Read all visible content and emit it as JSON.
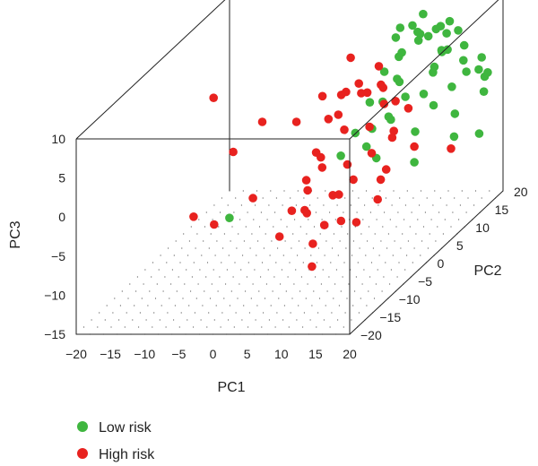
{
  "chart_data": {
    "type": "scatter3d",
    "title": "",
    "xlabel": "PC1",
    "ylabel": "PC2",
    "zlabel": "PC3",
    "xlim": [
      -20,
      20
    ],
    "ylim": [
      -20,
      20
    ],
    "zlim": [
      -15,
      10
    ],
    "x_ticks": [
      "−20",
      "−15",
      "−10",
      "−5",
      "0",
      "5",
      "10",
      "15",
      "20"
    ],
    "y_ticks": [
      "−20",
      "−15",
      "−10",
      "−5",
      "0",
      "5",
      "10",
      "15",
      "20"
    ],
    "z_ticks": [
      "−15",
      "−10",
      "−5",
      "0",
      "5",
      "10"
    ],
    "legend_position": "bottom-left",
    "series": [
      {
        "name": "Low risk",
        "color": "#3fb63f",
        "points": [
          [
            10,
            17,
            9
          ],
          [
            13,
            15,
            8
          ],
          [
            9,
            18,
            6
          ],
          [
            14,
            16,
            7
          ],
          [
            16,
            17,
            5
          ],
          [
            11,
            14,
            7
          ],
          [
            12,
            12,
            9
          ],
          [
            15,
            13,
            6
          ],
          [
            17,
            15,
            4
          ],
          [
            18,
            14,
            3
          ],
          [
            8,
            15,
            5
          ],
          [
            7,
            16,
            4
          ],
          [
            13,
            18,
            4
          ],
          [
            10,
            11,
            10
          ],
          [
            19,
            17,
            1
          ],
          [
            20,
            15,
            0
          ],
          [
            6,
            14,
            3
          ],
          [
            12,
            16,
            2
          ],
          [
            15,
            11,
            5
          ],
          [
            17,
            12,
            2
          ],
          [
            9,
            12,
            3
          ],
          [
            11,
            9,
            4
          ],
          [
            14,
            10,
            2
          ],
          [
            16,
            9,
            1
          ],
          [
            8,
            10,
            1
          ],
          [
            13,
            7,
            3
          ],
          [
            18,
            11,
            -1
          ],
          [
            5,
            12,
            0
          ],
          [
            10,
            8,
            0
          ],
          [
            12,
            5,
            1
          ],
          [
            7,
            9,
            -2
          ],
          [
            15,
            6,
            -1
          ],
          [
            19,
            9,
            -3
          ],
          [
            4,
            10,
            -3
          ],
          [
            9,
            4,
            -2
          ],
          [
            21,
            12,
            -4
          ],
          [
            3,
            8,
            -5
          ],
          [
            11,
            3,
            -3
          ],
          [
            16,
            4,
            -4
          ],
          [
            -6,
            -5,
            -7
          ],
          [
            20,
            16,
            2
          ],
          [
            18,
            18,
            3
          ],
          [
            14,
            19,
            6
          ],
          [
            6,
            17,
            6
          ],
          [
            11,
            20,
            3
          ],
          [
            17,
            19,
            1
          ],
          [
            13,
            13,
            8
          ],
          [
            9,
            16,
            8
          ],
          [
            15,
            15,
            9
          ],
          [
            12,
            18,
            7
          ]
        ]
      },
      {
        "name": "High risk",
        "color": "#e8221f",
        "points": [
          [
            6,
            2,
            3
          ],
          [
            8,
            0,
            2
          ],
          [
            10,
            3,
            1
          ],
          [
            5,
            -2,
            0
          ],
          [
            12,
            0,
            -1
          ],
          [
            7,
            -4,
            -1
          ],
          [
            9,
            -1,
            -2
          ],
          [
            11,
            -3,
            -3
          ],
          [
            4,
            1,
            -2
          ],
          [
            13,
            2,
            -4
          ],
          [
            6,
            -6,
            -3
          ],
          [
            8,
            -3,
            -5
          ],
          [
            10,
            -5,
            -4
          ],
          [
            3,
            -1,
            -4
          ],
          [
            14,
            -2,
            -6
          ],
          [
            5,
            -5,
            -6
          ],
          [
            7,
            -8,
            -5
          ],
          [
            9,
            -7,
            -7
          ],
          [
            12,
            -4,
            -8
          ],
          [
            2,
            -3,
            -7
          ],
          [
            15,
            0,
            1
          ],
          [
            11,
            5,
            3
          ],
          [
            6,
            4,
            5
          ],
          [
            8,
            6,
            4
          ],
          [
            13,
            4,
            0
          ],
          [
            4,
            3,
            2
          ],
          [
            10,
            6,
            5
          ],
          [
            7,
            1,
            6
          ],
          [
            9,
            2,
            7
          ],
          [
            12,
            3,
            6
          ],
          [
            -10,
            -2,
            7
          ],
          [
            -6,
            -4,
            1
          ],
          [
            -9,
            -9,
            -5
          ],
          [
            -6,
            -9,
            -6
          ],
          [
            -2,
            -6,
            -4
          ],
          [
            18,
            10,
            -5
          ],
          [
            10,
            -12,
            -10
          ],
          [
            1,
            0,
            3
          ],
          [
            3,
            -8,
            -8
          ],
          [
            14,
            6,
            2
          ],
          [
            16,
            4,
            -2
          ],
          [
            5,
            7,
            8
          ],
          [
            11,
            8,
            2
          ],
          [
            2,
            5,
            4
          ],
          [
            8,
            9,
            6
          ],
          [
            -4,
            0,
            3
          ],
          [
            15,
            -3,
            -3
          ],
          [
            12,
            -8,
            -6
          ],
          [
            6,
            8,
            3
          ],
          [
            9,
            -10,
            -8
          ]
        ]
      }
    ]
  }
}
